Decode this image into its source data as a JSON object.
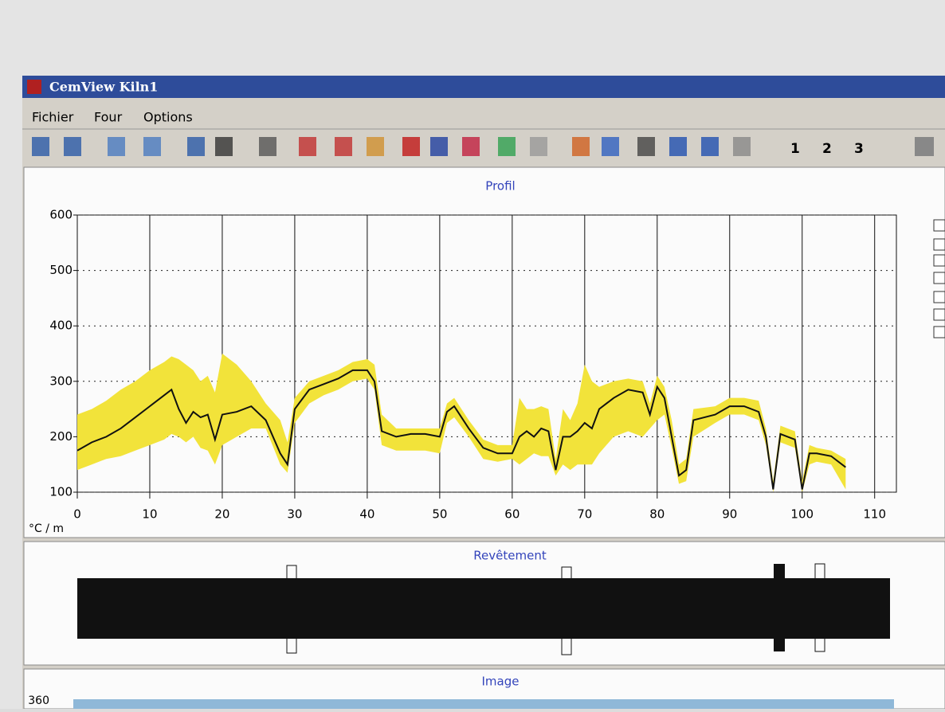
{
  "window": {
    "title": "CemView Kiln1"
  },
  "menu": [
    "Fichier",
    "Four",
    "Options"
  ],
  "toolbar": [
    "1",
    "2",
    "3"
  ],
  "chart_data": {
    "type": "line",
    "title": "Profil",
    "ylabel": "°C / m",
    "x": [
      0,
      2,
      4,
      6,
      8,
      10,
      12,
      13,
      14,
      15,
      16,
      17,
      18,
      19,
      20,
      22,
      24,
      26,
      28,
      29,
      30,
      32,
      34,
      36,
      38,
      40,
      41,
      42,
      44,
      46,
      48,
      50,
      51,
      52,
      54,
      56,
      58,
      60,
      61,
      62,
      63,
      64,
      65,
      66,
      67,
      68,
      69,
      70,
      71,
      72,
      74,
      76,
      78,
      79,
      80,
      81,
      82,
      83,
      84,
      85,
      88,
      90,
      92,
      94,
      95,
      96,
      97,
      98,
      99,
      100,
      101,
      102,
      104,
      106
    ],
    "series": [
      {
        "color": "#111111",
        "values": [
          175,
          190,
          200,
          215,
          235,
          255,
          275,
          285,
          250,
          225,
          245,
          235,
          240,
          195,
          240,
          245,
          255,
          230,
          170,
          150,
          250,
          285,
          295,
          305,
          320,
          320,
          300,
          210,
          200,
          205,
          205,
          200,
          245,
          255,
          215,
          180,
          170,
          170,
          200,
          210,
          200,
          215,
          210,
          140,
          200,
          200,
          210,
          225,
          215,
          250,
          270,
          285,
          280,
          240,
          290,
          270,
          200,
          130,
          140,
          230,
          240,
          255,
          255,
          245,
          200,
          105,
          205,
          200,
          195,
          105,
          170,
          170,
          165,
          145
        ]
      }
    ],
    "band": {
      "color": "#f2e33a",
      "upper": [
        240,
        250,
        265,
        285,
        300,
        320,
        335,
        345,
        340,
        330,
        320,
        300,
        310,
        280,
        350,
        330,
        300,
        260,
        230,
        190,
        270,
        300,
        310,
        320,
        335,
        340,
        330,
        240,
        215,
        215,
        215,
        215,
        260,
        270,
        230,
        195,
        185,
        185,
        270,
        250,
        250,
        255,
        250,
        160,
        250,
        230,
        260,
        330,
        300,
        290,
        300,
        305,
        300,
        260,
        310,
        290,
        230,
        150,
        160,
        250,
        255,
        270,
        270,
        265,
        215,
        120,
        220,
        215,
        210,
        120,
        185,
        180,
        175,
        160
      ],
      "lower": [
        140,
        150,
        160,
        165,
        175,
        185,
        195,
        205,
        200,
        190,
        200,
        180,
        175,
        150,
        185,
        200,
        215,
        215,
        150,
        135,
        225,
        260,
        275,
        285,
        300,
        305,
        285,
        185,
        175,
        175,
        175,
        170,
        225,
        235,
        200,
        160,
        155,
        160,
        150,
        160,
        170,
        165,
        165,
        130,
        150,
        140,
        150,
        150,
        150,
        170,
        200,
        210,
        200,
        215,
        230,
        240,
        180,
        115,
        120,
        200,
        225,
        240,
        240,
        230,
        185,
        100,
        190,
        185,
        180,
        100,
        150,
        155,
        150,
        105
      ]
    },
    "xlim": [
      0,
      113
    ],
    "ylim": [
      100,
      600
    ],
    "xticks": [
      0,
      10,
      20,
      30,
      40,
      50,
      60,
      70,
      80,
      90,
      100,
      110
    ],
    "yticks": [
      100,
      200,
      300,
      400,
      500,
      600
    ],
    "grid": true
  },
  "coating": {
    "title": "Revêtement"
  },
  "image": {
    "title": "Image",
    "yticks": [
      360
    ]
  }
}
